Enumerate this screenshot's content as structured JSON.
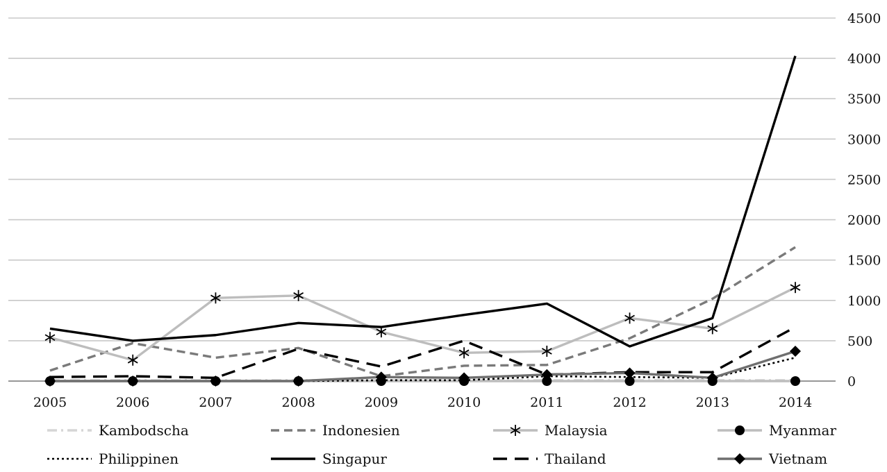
{
  "chart_data": {
    "type": "line",
    "title": "",
    "xlabel": "",
    "ylabel": "",
    "x": [
      "2005",
      "2006",
      "2007",
      "2008",
      "2009",
      "2010",
      "2011",
      "2012",
      "2013",
      "2014"
    ],
    "ylim": [
      0,
      4500
    ],
    "yticks": [
      "0",
      "500",
      "1000",
      "1500",
      "2000",
      "2500",
      "3000",
      "3500",
      "4000",
      "4500"
    ],
    "y_axis_side": "right",
    "grid": true,
    "legend_position": "bottom",
    "series": [
      {
        "name": "Kambodscha",
        "values": [
          10,
          10,
          10,
          10,
          10,
          10,
          10,
          10,
          10,
          10
        ],
        "color": "#d6d6d6",
        "dash": "dash-dot",
        "marker": "none"
      },
      {
        "name": "Indonesien",
        "values": [
          130,
          470,
          290,
          410,
          60,
          190,
          200,
          530,
          1020,
          1660
        ],
        "color": "#7a7a7a",
        "dash": "dash",
        "marker": "none"
      },
      {
        "name": "Malaysia",
        "values": [
          540,
          260,
          1030,
          1060,
          610,
          350,
          370,
          780,
          650,
          1160
        ],
        "color": "#bdbdbd",
        "dash": "solid",
        "marker": "asterisk"
      },
      {
        "name": "Myanmar",
        "values": [
          0,
          0,
          0,
          0,
          0,
          0,
          0,
          0,
          0,
          0
        ],
        "color": "#bdbdbd",
        "dash": "solid",
        "marker": "circle"
      },
      {
        "name": "Philippinen",
        "values": [
          0,
          0,
          0,
          0,
          10,
          10,
          60,
          50,
          40,
          290
        ],
        "color": "#000000",
        "dash": "dot",
        "marker": "none"
      },
      {
        "name": "Singapur",
        "values": [
          650,
          500,
          570,
          720,
          670,
          820,
          960,
          430,
          780,
          4030
        ],
        "color": "#000000",
        "dash": "solid",
        "marker": "none"
      },
      {
        "name": "Thailand",
        "values": [
          50,
          60,
          40,
          400,
          180,
          500,
          80,
          110,
          110,
          670
        ],
        "color": "#000000",
        "dash": "long-dash",
        "marker": "none"
      },
      {
        "name": "Vietnam",
        "values": [
          0,
          0,
          0,
          0,
          50,
          40,
          80,
          100,
          40,
          370
        ],
        "color": "#6f6f6f",
        "dash": "solid",
        "marker": "diamond"
      }
    ]
  }
}
